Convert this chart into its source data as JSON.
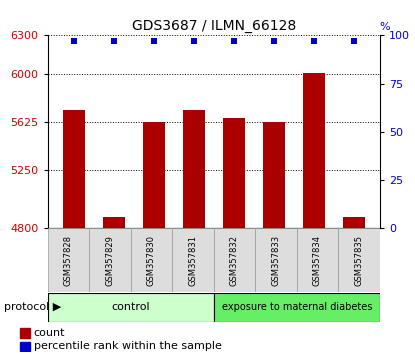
{
  "title": "GDS3687 / ILMN_66128",
  "samples": [
    "GSM357828",
    "GSM357829",
    "GSM357830",
    "GSM357831",
    "GSM357832",
    "GSM357833",
    "GSM357834",
    "GSM357835"
  ],
  "counts": [
    5720,
    4890,
    5630,
    5720,
    5660,
    5630,
    6010,
    4890
  ],
  "percentile_ranks": [
    97,
    97,
    97,
    97,
    97,
    97,
    97,
    97
  ],
  "ylim_left": [
    4800,
    6300
  ],
  "ylim_right": [
    0,
    100
  ],
  "yticks_left": [
    4800,
    5250,
    5625,
    6000,
    6300
  ],
  "yticks_right": [
    0,
    25,
    50,
    75,
    100
  ],
  "bar_color": "#aa0000",
  "dot_color": "#0000cc",
  "n_control": 4,
  "n_exposure": 4,
  "control_label": "control",
  "exposure_label": "exposure to maternal diabetes",
  "control_color": "#ccffcc",
  "exposure_color": "#66ee66",
  "protocol_label": "protocol",
  "legend_count_label": "count",
  "legend_pct_label": "percentile rank within the sample",
  "left_axis_color": "#cc0000",
  "right_axis_color": "#0000cc",
  "title_fontsize": 10,
  "tick_fontsize": 8,
  "label_fontsize": 7,
  "sample_fontsize": 6
}
